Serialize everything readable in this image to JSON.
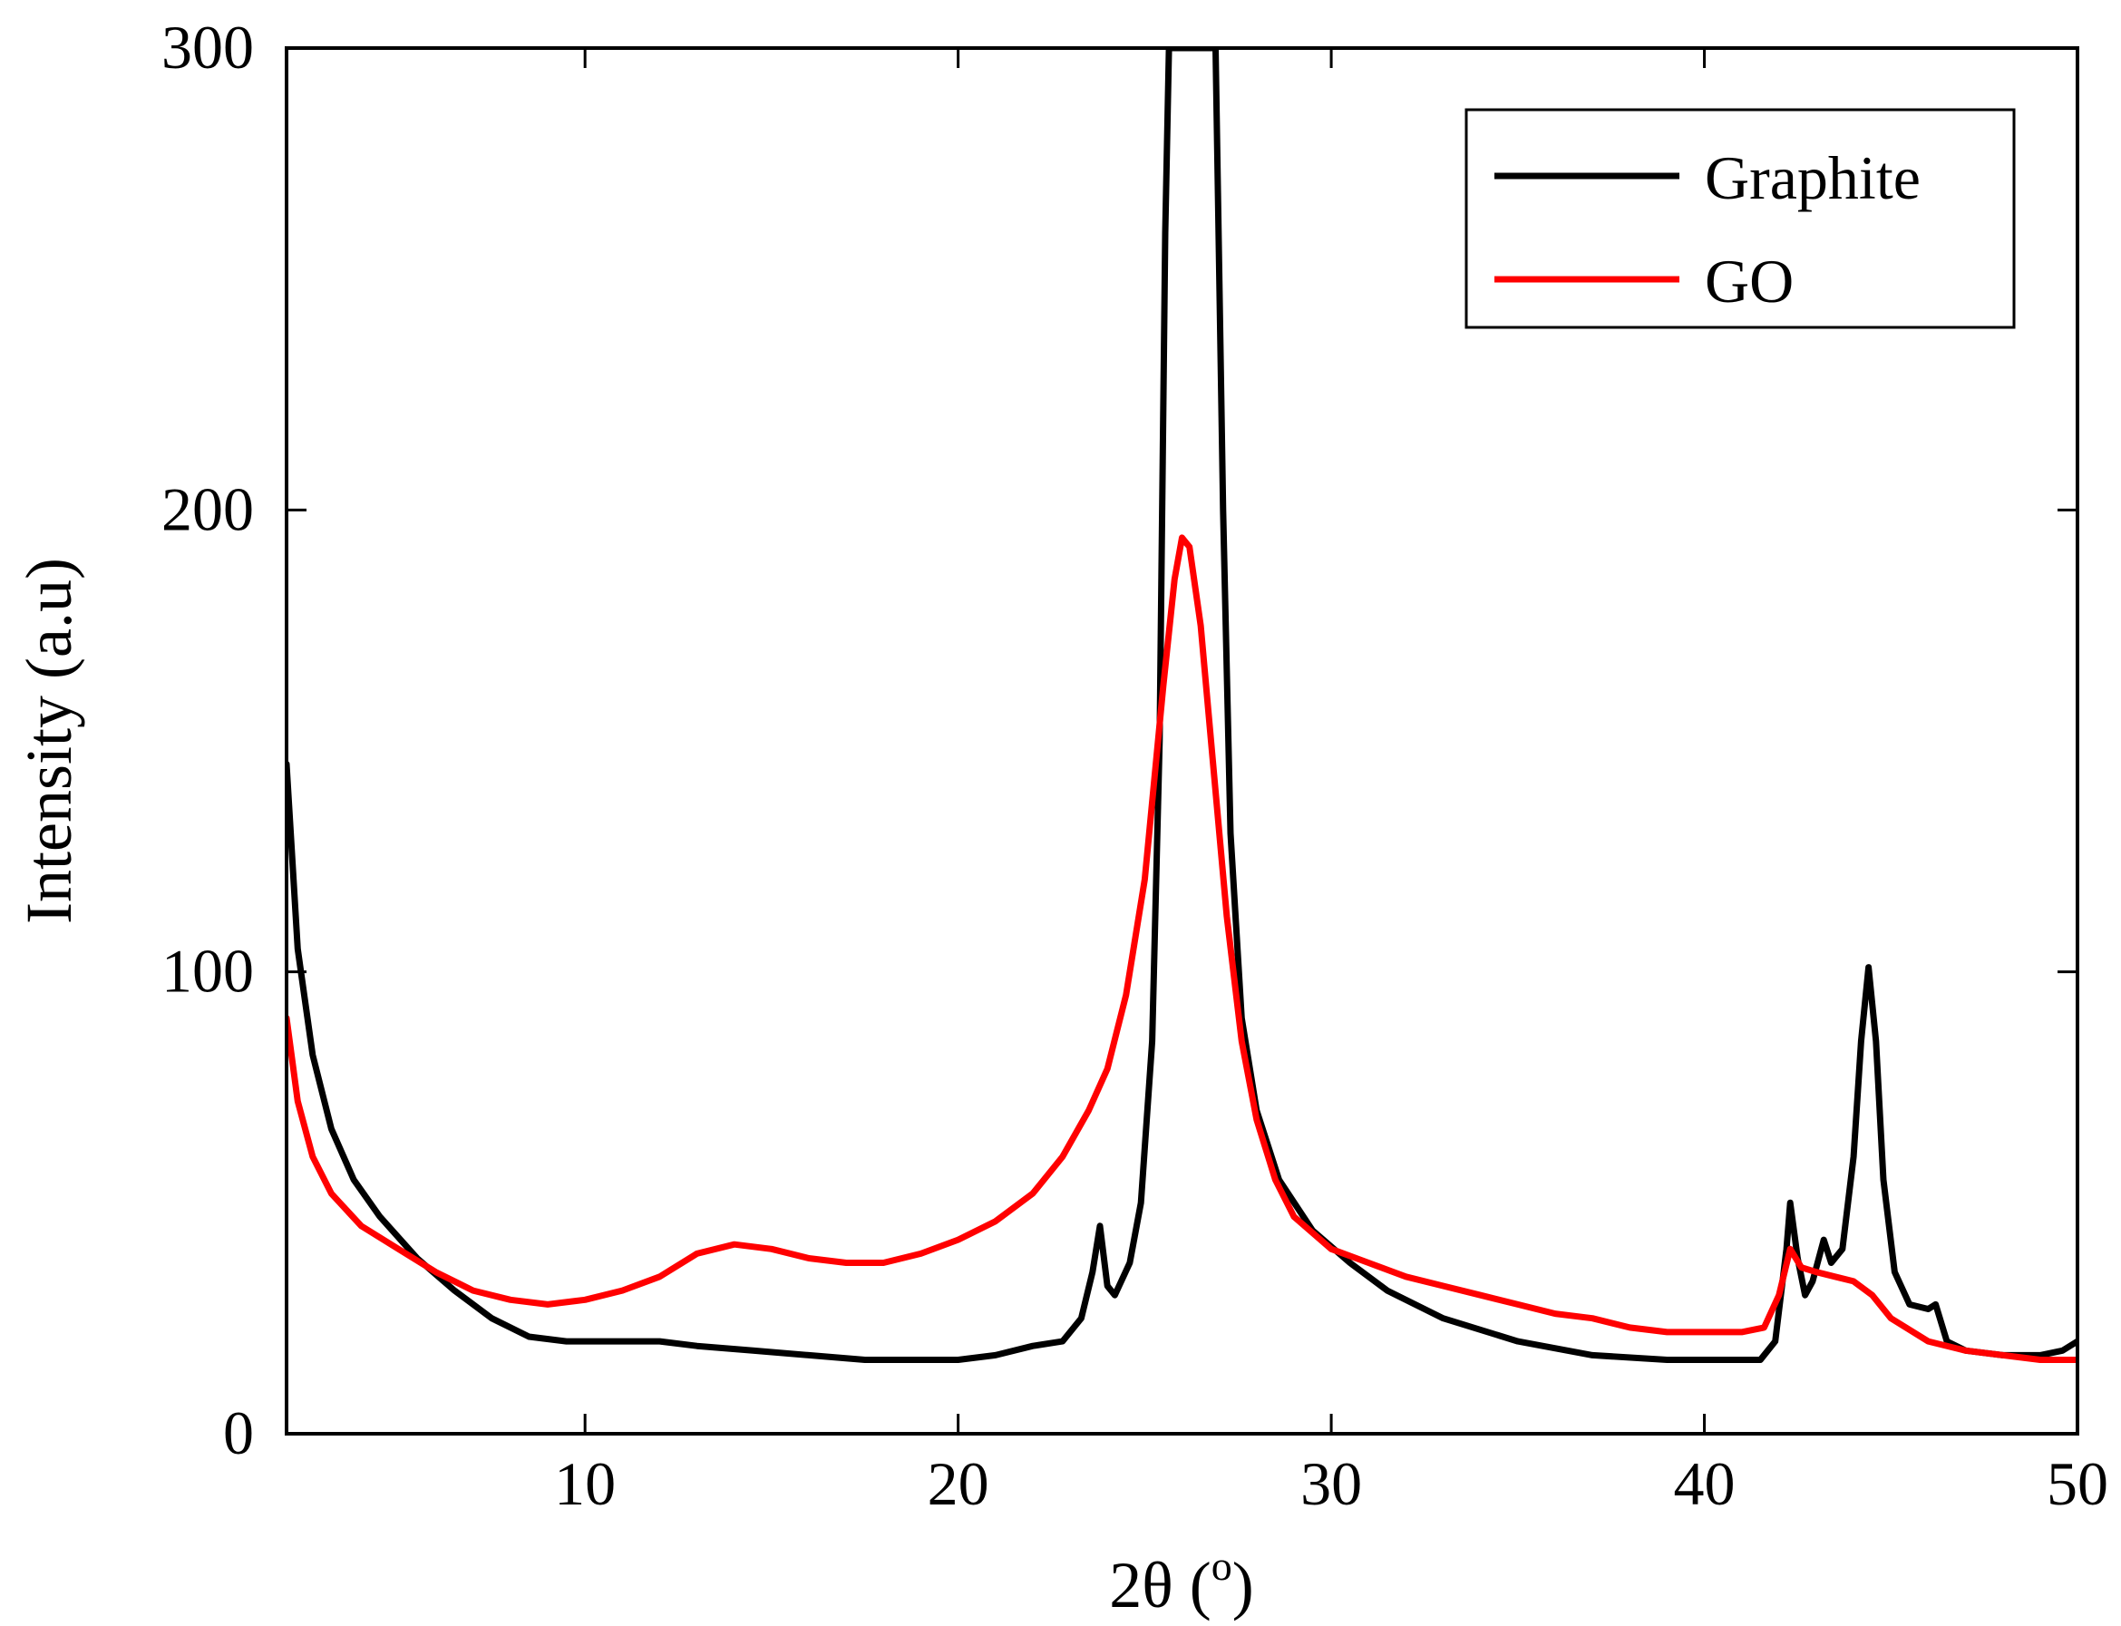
{
  "chart_data": {
    "type": "line",
    "xlabel": "2θ (o)",
    "xlabel_parts": {
      "prefix": "2θ (",
      "superscript": "o",
      "suffix": ")"
    },
    "ylabel": "Intensity (a.u)",
    "xlim": [
      2,
      50
    ],
    "ylim": [
      0,
      300
    ],
    "xticks": [
      10,
      20,
      30,
      40,
      50
    ],
    "yticks": [
      0,
      100,
      200,
      300
    ],
    "legend_position": "top-right",
    "grid": false,
    "series": [
      {
        "name": "Graphite",
        "color": "#000000",
        "points": [
          [
            2.0,
            145
          ],
          [
            2.3,
            105
          ],
          [
            2.7,
            82
          ],
          [
            3.2,
            66
          ],
          [
            3.8,
            55
          ],
          [
            4.5,
            47
          ],
          [
            5.5,
            38
          ],
          [
            6.5,
            31
          ],
          [
            7.5,
            25
          ],
          [
            8.5,
            21
          ],
          [
            9.5,
            20
          ],
          [
            11,
            20
          ],
          [
            12,
            20
          ],
          [
            13,
            19
          ],
          [
            14.5,
            18
          ],
          [
            16,
            17
          ],
          [
            17.5,
            16
          ],
          [
            19,
            16
          ],
          [
            20,
            16
          ],
          [
            21,
            17
          ],
          [
            22,
            19
          ],
          [
            22.8,
            20
          ],
          [
            23.3,
            25
          ],
          [
            23.6,
            35
          ],
          [
            23.8,
            45
          ],
          [
            24.0,
            32
          ],
          [
            24.2,
            30
          ],
          [
            24.6,
            37
          ],
          [
            24.9,
            50
          ],
          [
            25.2,
            85
          ],
          [
            25.4,
            150
          ],
          [
            25.55,
            260
          ],
          [
            25.65,
            300
          ],
          [
            26.9,
            300
          ],
          [
            27.1,
            200
          ],
          [
            27.3,
            130
          ],
          [
            27.6,
            90
          ],
          [
            28.0,
            70
          ],
          [
            28.6,
            55
          ],
          [
            29.5,
            44
          ],
          [
            30.5,
            37
          ],
          [
            31.5,
            31
          ],
          [
            33,
            25
          ],
          [
            35,
            20
          ],
          [
            37,
            17
          ],
          [
            39,
            16
          ],
          [
            40.5,
            16
          ],
          [
            41.5,
            16
          ],
          [
            41.9,
            20
          ],
          [
            42.2,
            40
          ],
          [
            42.3,
            50
          ],
          [
            42.5,
            38
          ],
          [
            42.7,
            30
          ],
          [
            42.9,
            33
          ],
          [
            43.2,
            42
          ],
          [
            43.4,
            37
          ],
          [
            43.7,
            40
          ],
          [
            44.0,
            60
          ],
          [
            44.2,
            85
          ],
          [
            44.4,
            101
          ],
          [
            44.6,
            85
          ],
          [
            44.8,
            55
          ],
          [
            45.1,
            35
          ],
          [
            45.5,
            28
          ],
          [
            46.0,
            27
          ],
          [
            46.2,
            28
          ],
          [
            46.5,
            20
          ],
          [
            47,
            18
          ],
          [
            48,
            17
          ],
          [
            49,
            17
          ],
          [
            49.6,
            18
          ],
          [
            50,
            20
          ]
        ]
      },
      {
        "name": "GO",
        "color": "#ff0000",
        "points": [
          [
            2.0,
            90
          ],
          [
            2.3,
            72
          ],
          [
            2.7,
            60
          ],
          [
            3.2,
            52
          ],
          [
            4.0,
            45
          ],
          [
            5.0,
            40
          ],
          [
            6.0,
            35
          ],
          [
            7.0,
            31
          ],
          [
            8.0,
            29
          ],
          [
            9.0,
            28
          ],
          [
            10,
            29
          ],
          [
            11,
            31
          ],
          [
            12,
            34
          ],
          [
            13,
            39
          ],
          [
            14,
            41
          ],
          [
            15,
            40
          ],
          [
            16,
            38
          ],
          [
            17,
            37
          ],
          [
            18,
            37
          ],
          [
            19,
            39
          ],
          [
            20,
            42
          ],
          [
            21,
            46
          ],
          [
            22,
            52
          ],
          [
            22.8,
            60
          ],
          [
            23.5,
            70
          ],
          [
            24.0,
            79
          ],
          [
            24.5,
            95
          ],
          [
            25.0,
            120
          ],
          [
            25.5,
            162
          ],
          [
            25.8,
            185
          ],
          [
            26.0,
            194
          ],
          [
            26.2,
            192
          ],
          [
            26.5,
            175
          ],
          [
            26.8,
            148
          ],
          [
            27.2,
            112
          ],
          [
            27.6,
            85
          ],
          [
            28.0,
            68
          ],
          [
            28.5,
            55
          ],
          [
            29.0,
            47
          ],
          [
            30,
            40
          ],
          [
            31,
            37
          ],
          [
            32,
            34
          ],
          [
            33,
            32
          ],
          [
            34,
            30
          ],
          [
            35,
            28
          ],
          [
            36,
            26
          ],
          [
            37,
            25
          ],
          [
            38,
            23
          ],
          [
            39,
            22
          ],
          [
            40,
            22
          ],
          [
            41,
            22
          ],
          [
            41.6,
            23
          ],
          [
            42.0,
            30
          ],
          [
            42.3,
            40
          ],
          [
            42.6,
            36
          ],
          [
            43,
            35
          ],
          [
            43.5,
            34
          ],
          [
            44.0,
            33
          ],
          [
            44.5,
            30
          ],
          [
            45,
            25
          ],
          [
            46,
            20
          ],
          [
            47,
            18
          ],
          [
            48,
            17
          ],
          [
            49,
            16
          ],
          [
            50,
            16
          ]
        ]
      }
    ]
  }
}
